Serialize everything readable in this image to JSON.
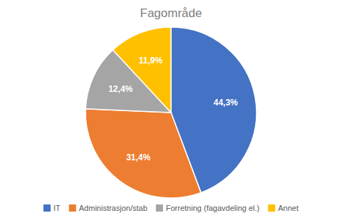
{
  "chart_data": {
    "type": "pie",
    "title": "Fagområde",
    "categories": [
      "IT",
      "Administrasjon/stab",
      "Forretning (fagavdeling el.)",
      "Annet"
    ],
    "values": [
      44.3,
      31.4,
      12.4,
      11.9
    ],
    "value_labels": [
      "44,3%",
      "31,4%",
      "12,4%",
      "11,9%"
    ],
    "colors": [
      "#4472C4",
      "#ED7D31",
      "#A5A5A5",
      "#FFC000"
    ],
    "data_labels": true,
    "legend": "bottom"
  }
}
